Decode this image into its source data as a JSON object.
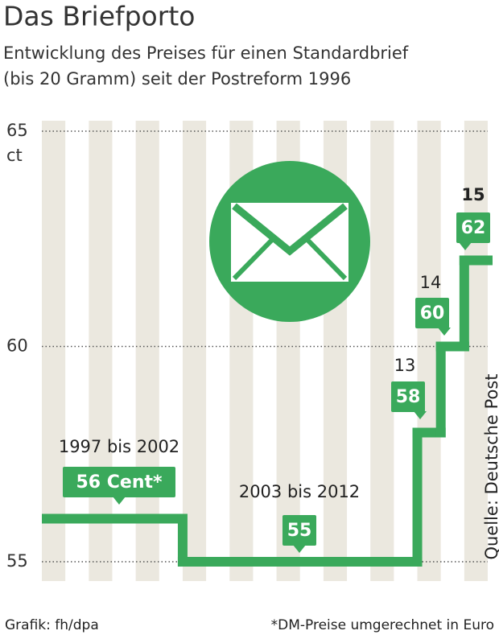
{
  "chart_data": {
    "type": "step",
    "title": "Das Briefporto",
    "subtitle": [
      "Entwicklung des Preises für einen Standardbrief",
      "(bis 20 Gramm) seit der Postreform 1996"
    ],
    "y_unit": "ct",
    "categories": [
      "1997 bis 2002",
      "2003 bis 2012",
      "13",
      "14",
      "15"
    ],
    "values": [
      56,
      55,
      58,
      60,
      62
    ],
    "value_labels": [
      "56 Cent*",
      "55",
      "58",
      "60",
      "62"
    ],
    "color": "#3aa95b",
    "ylim": [
      55,
      65
    ],
    "yticks": [
      55,
      60,
      65
    ],
    "grid": true,
    "source": "Quelle: Deutsche Post",
    "credit": "Grafik: fh/dpa",
    "note": "*DM-Preise umgerechnet in Euro"
  }
}
